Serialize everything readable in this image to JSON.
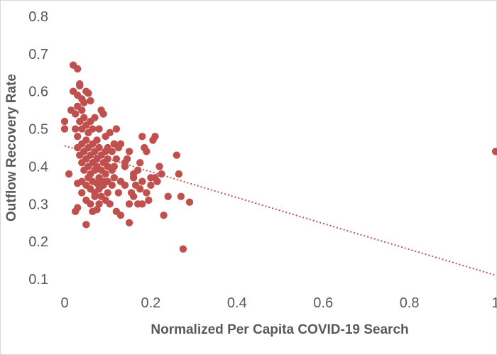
{
  "chart_data": {
    "type": "scatter",
    "title": "",
    "xlabel": "Normalized Per Capita COVID-19 Search",
    "ylabel": "Outflow Recovery Rate",
    "xlim": [
      0,
      1
    ],
    "ylim": [
      0.1,
      0.8
    ],
    "x_ticks": [
      "0",
      "0.2",
      "0.4",
      "0.6",
      "0.8",
      "1"
    ],
    "y_ticks": [
      "0.1",
      "0.2",
      "0.3",
      "0.4",
      "0.5",
      "0.6",
      "0.7",
      "0.8"
    ],
    "grid": false,
    "legend": "none",
    "colors": {
      "points": "#c0504d",
      "trendline": "#c0504d",
      "axis_text": "#595959"
    },
    "trendline": {
      "style": "dotted",
      "from": [
        0,
        0.455
      ],
      "to": [
        1,
        0.11
      ]
    },
    "points": [
      [
        0.0,
        0.52
      ],
      [
        0.0,
        0.5
      ],
      [
        0.01,
        0.38
      ],
      [
        0.015,
        0.55
      ],
      [
        0.02,
        0.67
      ],
      [
        0.03,
        0.66
      ],
      [
        0.02,
        0.6
      ],
      [
        0.03,
        0.59
      ],
      [
        0.035,
        0.62
      ],
      [
        0.035,
        0.615
      ],
      [
        0.04,
        0.58
      ],
      [
        0.025,
        0.54
      ],
      [
        0.03,
        0.56
      ],
      [
        0.04,
        0.55
      ],
      [
        0.045,
        0.57
      ],
      [
        0.05,
        0.6
      ],
      [
        0.055,
        0.595
      ],
      [
        0.06,
        0.575
      ],
      [
        0.025,
        0.5
      ],
      [
        0.03,
        0.48
      ],
      [
        0.035,
        0.52
      ],
      [
        0.04,
        0.5
      ],
      [
        0.045,
        0.53
      ],
      [
        0.05,
        0.51
      ],
      [
        0.055,
        0.49
      ],
      [
        0.06,
        0.52
      ],
      [
        0.065,
        0.5
      ],
      [
        0.07,
        0.53
      ],
      [
        0.075,
        0.47
      ],
      [
        0.08,
        0.5
      ],
      [
        0.085,
        0.55
      ],
      [
        0.09,
        0.54
      ],
      [
        0.095,
        0.48
      ],
      [
        0.1,
        0.45
      ],
      [
        0.105,
        0.49
      ],
      [
        0.11,
        0.44
      ],
      [
        0.115,
        0.46
      ],
      [
        0.12,
        0.42
      ],
      [
        0.125,
        0.45
      ],
      [
        0.03,
        0.45
      ],
      [
        0.035,
        0.43
      ],
      [
        0.04,
        0.46
      ],
      [
        0.045,
        0.44
      ],
      [
        0.05,
        0.47
      ],
      [
        0.055,
        0.45
      ],
      [
        0.06,
        0.43
      ],
      [
        0.065,
        0.46
      ],
      [
        0.07,
        0.44
      ],
      [
        0.075,
        0.42
      ],
      [
        0.08,
        0.45
      ],
      [
        0.085,
        0.43
      ],
      [
        0.09,
        0.41
      ],
      [
        0.095,
        0.44
      ],
      [
        0.1,
        0.42
      ],
      [
        0.04,
        0.41
      ],
      [
        0.045,
        0.39
      ],
      [
        0.05,
        0.42
      ],
      [
        0.055,
        0.4
      ],
      [
        0.06,
        0.38
      ],
      [
        0.065,
        0.41
      ],
      [
        0.07,
        0.39
      ],
      [
        0.075,
        0.4
      ],
      [
        0.08,
        0.37
      ],
      [
        0.085,
        0.39
      ],
      [
        0.09,
        0.36
      ],
      [
        0.095,
        0.38
      ],
      [
        0.1,
        0.4
      ],
      [
        0.03,
        0.355
      ],
      [
        0.04,
        0.36
      ],
      [
        0.05,
        0.35
      ],
      [
        0.055,
        0.37
      ],
      [
        0.06,
        0.34
      ],
      [
        0.065,
        0.36
      ],
      [
        0.07,
        0.33
      ],
      [
        0.075,
        0.355
      ],
      [
        0.08,
        0.34
      ],
      [
        0.085,
        0.32
      ],
      [
        0.09,
        0.35
      ],
      [
        0.095,
        0.31
      ],
      [
        0.1,
        0.33
      ],
      [
        0.04,
        0.33
      ],
      [
        0.05,
        0.31
      ],
      [
        0.06,
        0.3
      ],
      [
        0.07,
        0.32
      ],
      [
        0.08,
        0.3
      ],
      [
        0.03,
        0.29
      ],
      [
        0.025,
        0.28
      ],
      [
        0.065,
        0.28
      ],
      [
        0.075,
        0.285
      ],
      [
        0.05,
        0.245
      ],
      [
        0.105,
        0.3
      ],
      [
        0.11,
        0.35
      ],
      [
        0.115,
        0.37
      ],
      [
        0.125,
        0.33
      ],
      [
        0.13,
        0.36
      ],
      [
        0.12,
        0.28
      ],
      [
        0.13,
        0.27
      ],
      [
        0.14,
        0.35
      ],
      [
        0.14,
        0.4
      ],
      [
        0.145,
        0.42
      ],
      [
        0.15,
        0.44
      ],
      [
        0.15,
        0.3
      ],
      [
        0.155,
        0.33
      ],
      [
        0.16,
        0.32
      ],
      [
        0.16,
        0.38
      ],
      [
        0.165,
        0.35
      ],
      [
        0.17,
        0.39
      ],
      [
        0.175,
        0.41
      ],
      [
        0.175,
        0.34
      ],
      [
        0.18,
        0.36
      ],
      [
        0.18,
        0.48
      ],
      [
        0.185,
        0.45
      ],
      [
        0.19,
        0.44
      ],
      [
        0.19,
        0.33
      ],
      [
        0.195,
        0.31
      ],
      [
        0.2,
        0.35
      ],
      [
        0.2,
        0.37
      ],
      [
        0.205,
        0.47
      ],
      [
        0.21,
        0.48
      ],
      [
        0.21,
        0.37
      ],
      [
        0.215,
        0.36
      ],
      [
        0.22,
        0.4
      ],
      [
        0.225,
        0.38
      ],
      [
        0.23,
        0.27
      ],
      [
        0.24,
        0.32
      ],
      [
        0.26,
        0.43
      ],
      [
        0.265,
        0.38
      ],
      [
        0.27,
        0.32
      ],
      [
        0.275,
        0.18
      ],
      [
        0.29,
        0.305
      ],
      [
        0.15,
        0.25
      ],
      [
        0.18,
        0.3
      ],
      [
        0.12,
        0.5
      ],
      [
        0.13,
        0.46
      ],
      [
        0.14,
        0.41
      ],
      [
        0.16,
        0.37
      ],
      [
        0.17,
        0.3
      ],
      [
        0.1,
        0.36
      ],
      [
        0.11,
        0.39
      ],
      [
        0.115,
        0.4
      ],
      [
        1.0,
        0.44
      ]
    ]
  }
}
